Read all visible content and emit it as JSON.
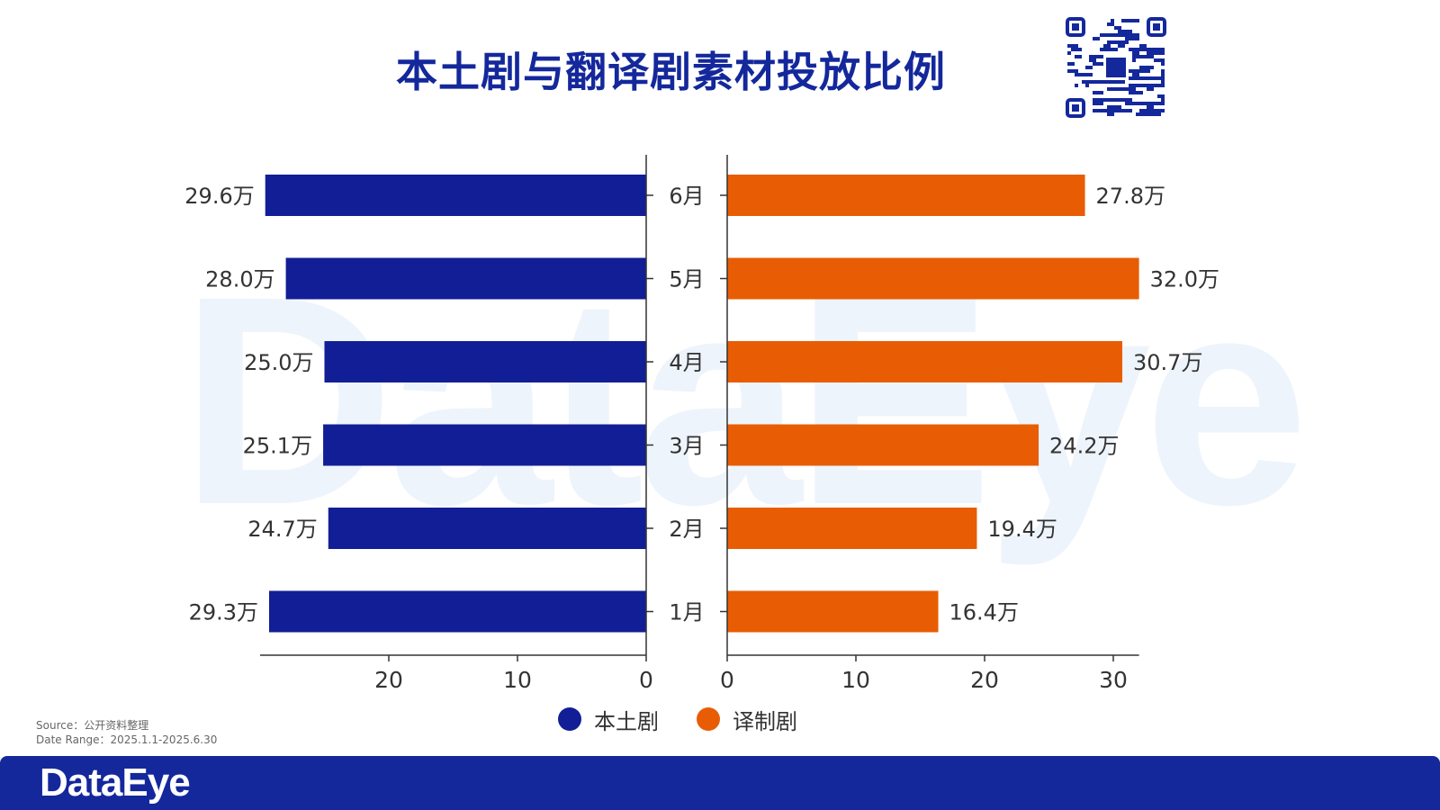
{
  "title": "本土剧与翻译剧素材投放比例",
  "watermark": "DataEye",
  "brand": "DataEye",
  "source": {
    "line1": "Source：公开资料整理",
    "line2": "Date Range：2025.1.1-2025.6.30"
  },
  "colors": {
    "local": "#121e96",
    "translated": "#e85d04",
    "title": "#14289c",
    "footer": "#14289c"
  },
  "chart_data": {
    "type": "bar",
    "title": "本土剧与翻译剧素材投放比例",
    "categories": [
      "6月",
      "5月",
      "4月",
      "3月",
      "2月",
      "1月"
    ],
    "series": [
      {
        "name": "本土剧",
        "values": [
          29.6,
          28.0,
          25.0,
          25.1,
          24.7,
          29.3
        ],
        "labels": [
          "29.6万",
          "28.0万",
          "25.0万",
          "25.1万",
          "24.7万",
          "29.3万"
        ],
        "xlim": [
          0,
          30
        ],
        "ticks": [
          20,
          10,
          0
        ],
        "direction": "left"
      },
      {
        "name": "译制剧",
        "values": [
          27.8,
          32.0,
          30.7,
          24.2,
          19.4,
          16.4
        ],
        "labels": [
          "27.8万",
          "32.0万",
          "30.7万",
          "24.2万",
          "19.4万",
          "16.4万"
        ],
        "xlim": [
          0,
          32
        ],
        "ticks": [
          0,
          10,
          20,
          30
        ],
        "direction": "right"
      }
    ],
    "legend": [
      "本土剧",
      "译制剧"
    ],
    "legend_position": "bottom"
  }
}
